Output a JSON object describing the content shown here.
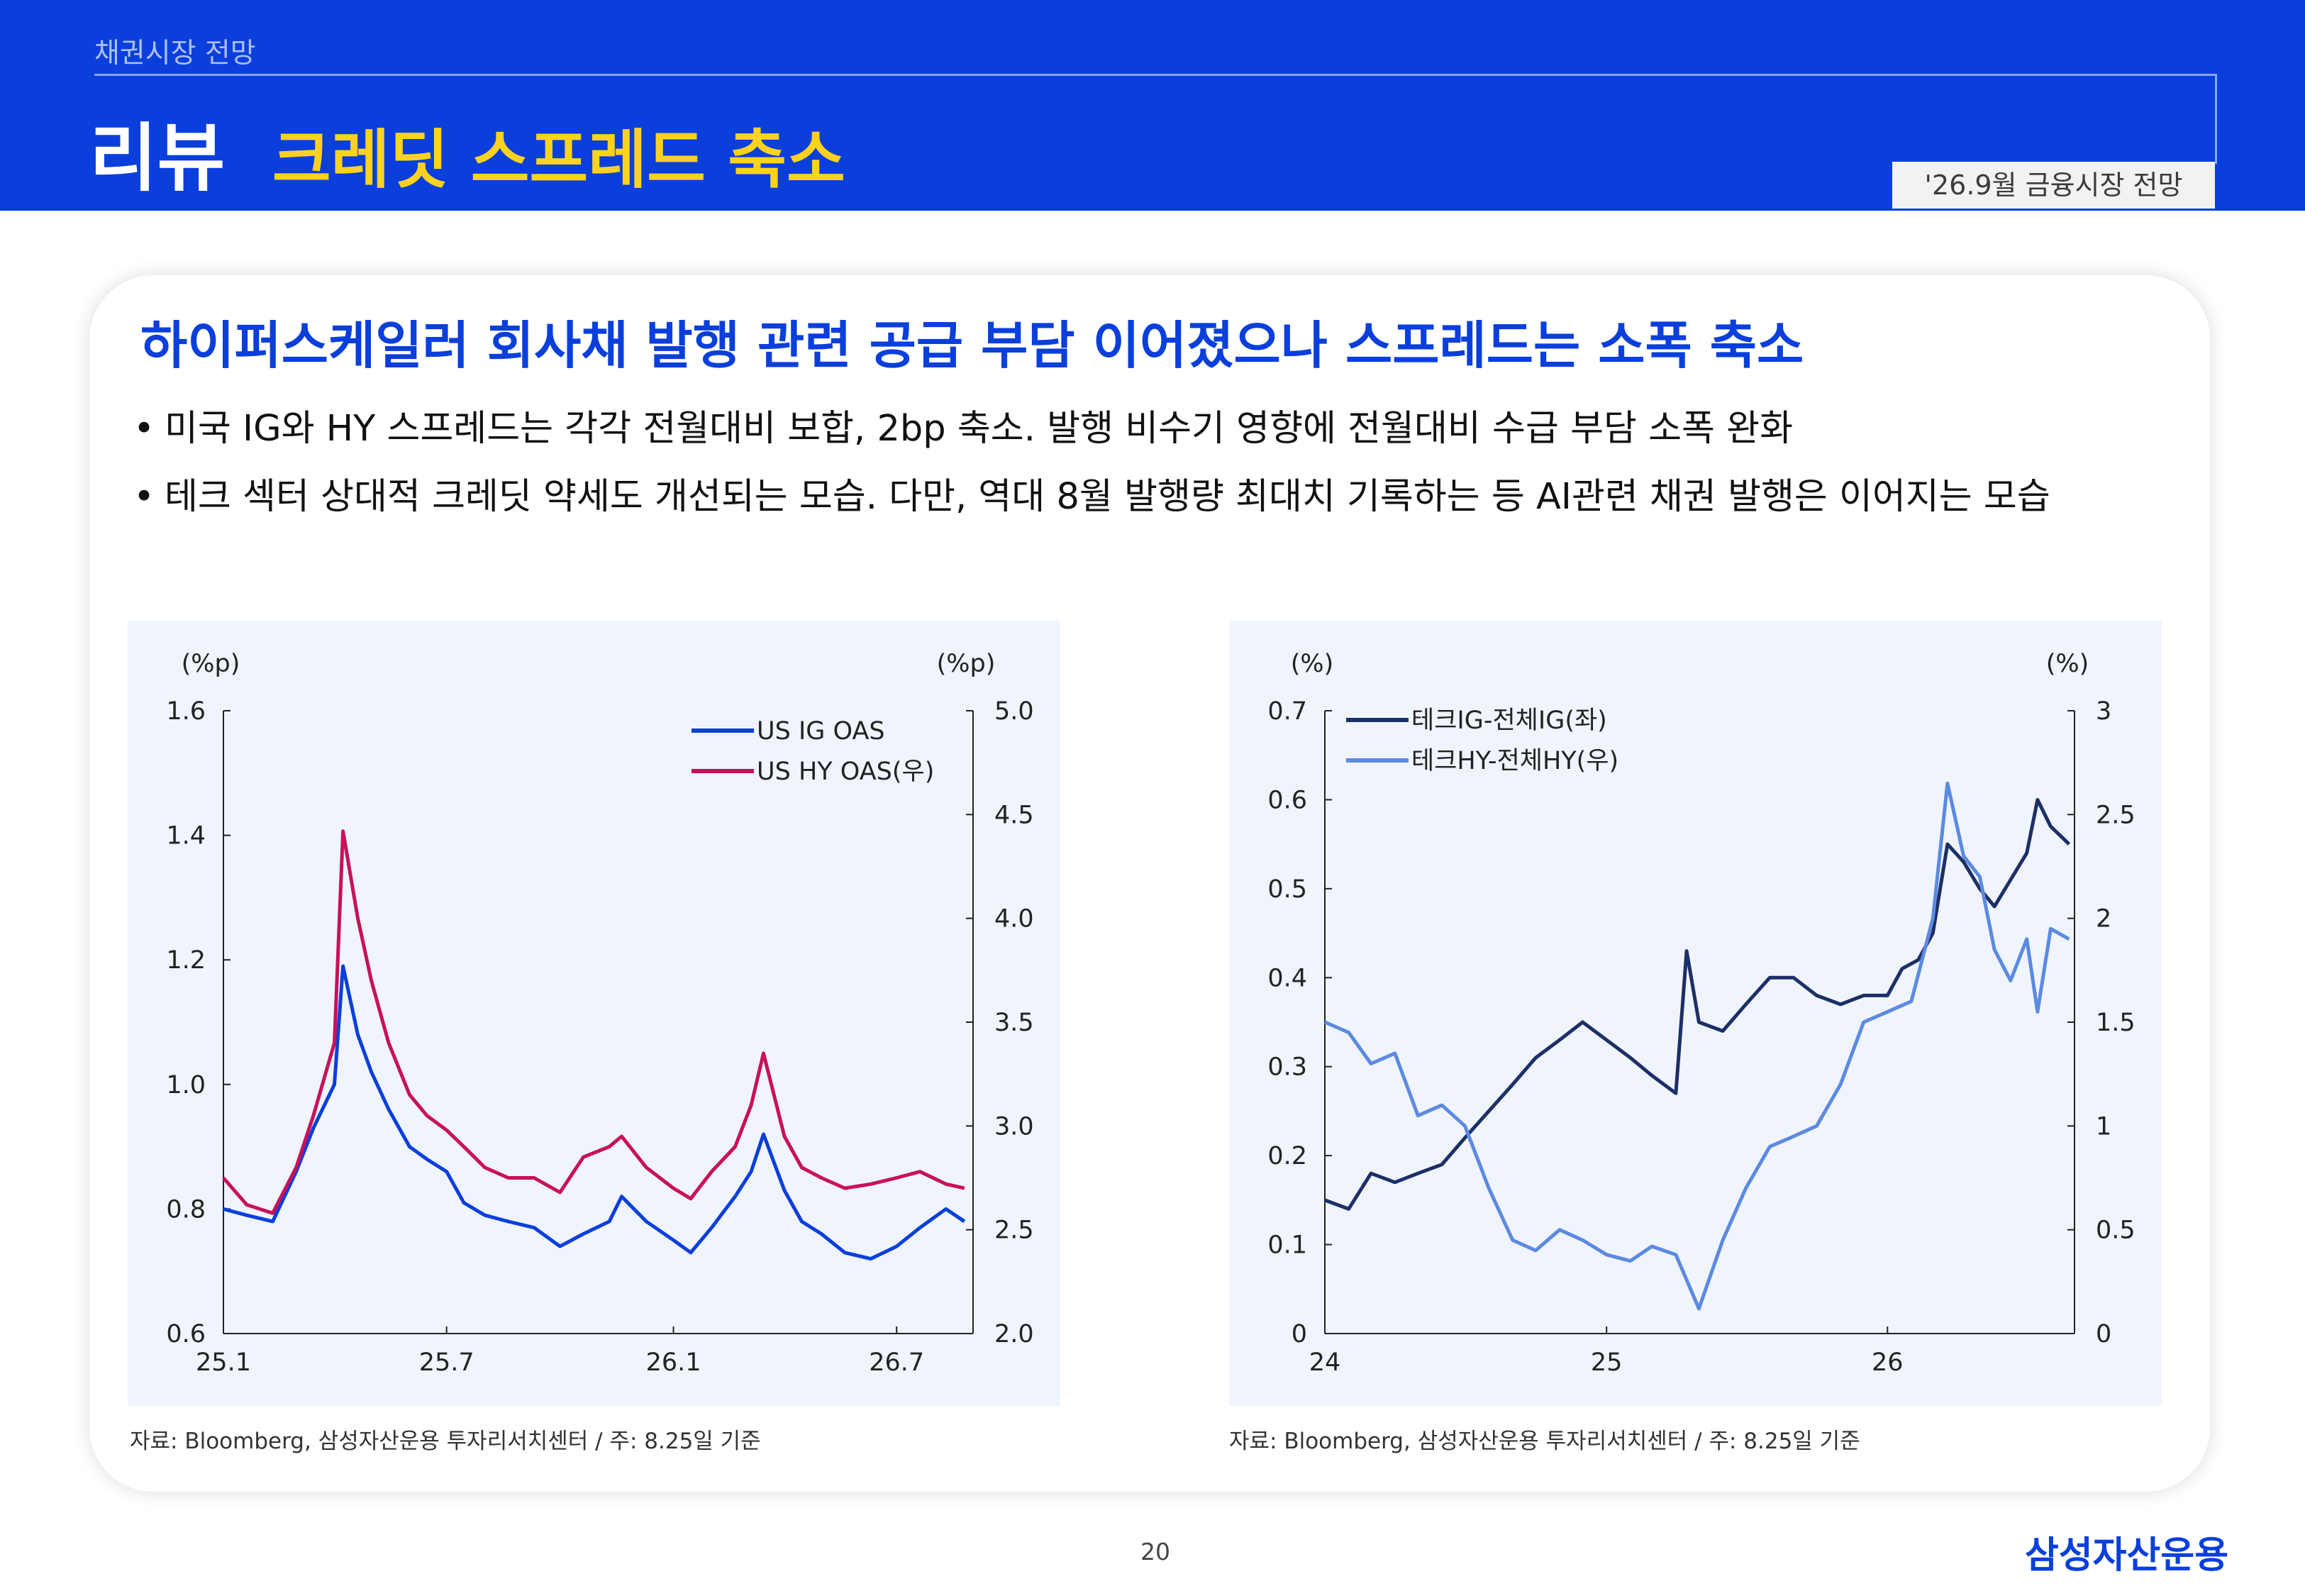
{
  "header": {
    "section": "채권시장 전망",
    "title_main": "리뷰",
    "title_sub": "크레딧 스프레드 축소",
    "issue": "'26.9월 금융시장 전망"
  },
  "content": {
    "headline": "하이퍼스케일러 회사채 발행 관련 공급 부담 이어졌으나 스프레드는 소폭 축소",
    "bullet_char": "•",
    "bullets": [
      "미국 IG와 HY 스프레드는 각각 전월대비 보합, 2bp 축소. 발행 비수기 영향에 전월대비 수급 부담 소폭 완화",
      "테크 섹터 상대적 크레딧 약세도 개선되는 모습. 다만, 역대 8월 발행량 최대치 기록하는 등 AI관련 채권 발행은 이어지는 모습"
    ]
  },
  "colors": {
    "brand_blue": "#0a3fdc",
    "accent_yellow": "#ffd21f",
    "ig_line": "#0a3fdc",
    "hy_line": "#c8115a",
    "tech_ig_line": "#1c2f66",
    "tech_hy_line": "#5b8ae0"
  },
  "chart_data": [
    {
      "type": "line",
      "left_unit": "(%p)",
      "right_unit": "(%p)",
      "x_ticks": [
        "25.1",
        "25.7",
        "26.1",
        "26.7"
      ],
      "x_tick_dates": [
        "2025-01-01",
        "2025-07-01",
        "2026-01-01",
        "2026-07-01"
      ],
      "x_range": [
        "2025-01-01",
        "2026-09-01"
      ],
      "ylim_left": [
        0.6,
        1.6
      ],
      "y_ticks_left": [
        "0.6",
        "0.8",
        "1.0",
        "1.2",
        "1.4",
        "1.6"
      ],
      "ylim_right": [
        2.0,
        5.0
      ],
      "y_ticks_right": [
        "2.0",
        "2.5",
        "3.0",
        "3.5",
        "4.0",
        "4.5",
        "5.0"
      ],
      "legend_position": "top-right",
      "series": [
        {
          "name": "US IG OAS",
          "axis": "left",
          "color": "#0a3fdc",
          "points": [
            [
              "2025-01-01",
              0.8
            ],
            [
              "2025-01-20",
              0.79
            ],
            [
              "2025-02-10",
              0.78
            ],
            [
              "2025-03-01",
              0.86
            ],
            [
              "2025-03-15",
              0.93
            ],
            [
              "2025-04-01",
              1.0
            ],
            [
              "2025-04-08",
              1.19
            ],
            [
              "2025-04-20",
              1.08
            ],
            [
              "2025-05-01",
              1.02
            ],
            [
              "2025-05-15",
              0.96
            ],
            [
              "2025-06-01",
              0.9
            ],
            [
              "2025-06-15",
              0.88
            ],
            [
              "2025-07-01",
              0.86
            ],
            [
              "2025-07-15",
              0.81
            ],
            [
              "2025-08-01",
              0.79
            ],
            [
              "2025-08-20",
              0.78
            ],
            [
              "2025-09-10",
              0.77
            ],
            [
              "2025-10-01",
              0.74
            ],
            [
              "2025-10-20",
              0.76
            ],
            [
              "2025-11-10",
              0.78
            ],
            [
              "2025-11-20",
              0.82
            ],
            [
              "2025-12-10",
              0.78
            ],
            [
              "2026-01-01",
              0.75
            ],
            [
              "2026-01-15",
              0.73
            ],
            [
              "2026-02-01",
              0.77
            ],
            [
              "2026-02-20",
              0.82
            ],
            [
              "2026-03-05",
              0.86
            ],
            [
              "2026-03-15",
              0.92
            ],
            [
              "2026-04-01",
              0.83
            ],
            [
              "2026-04-15",
              0.78
            ],
            [
              "2026-05-01",
              0.76
            ],
            [
              "2026-05-20",
              0.73
            ],
            [
              "2026-06-10",
              0.72
            ],
            [
              "2026-07-01",
              0.74
            ],
            [
              "2026-07-20",
              0.77
            ],
            [
              "2026-08-10",
              0.8
            ],
            [
              "2026-08-25",
              0.78
            ]
          ]
        },
        {
          "name": "US HY OAS(우)",
          "axis": "right",
          "color": "#c8115a",
          "points": [
            [
              "2025-01-01",
              2.75
            ],
            [
              "2025-01-20",
              2.62
            ],
            [
              "2025-02-10",
              2.58
            ],
            [
              "2025-03-01",
              2.8
            ],
            [
              "2025-03-15",
              3.05
            ],
            [
              "2025-04-01",
              3.4
            ],
            [
              "2025-04-08",
              4.42
            ],
            [
              "2025-04-20",
              4.0
            ],
            [
              "2025-05-01",
              3.7
            ],
            [
              "2025-05-15",
              3.4
            ],
            [
              "2025-06-01",
              3.15
            ],
            [
              "2025-06-15",
              3.05
            ],
            [
              "2025-07-01",
              2.98
            ],
            [
              "2025-07-15",
              2.9
            ],
            [
              "2025-08-01",
              2.8
            ],
            [
              "2025-08-20",
              2.75
            ],
            [
              "2025-09-10",
              2.75
            ],
            [
              "2025-10-01",
              2.68
            ],
            [
              "2025-10-20",
              2.85
            ],
            [
              "2025-11-10",
              2.9
            ],
            [
              "2025-11-20",
              2.95
            ],
            [
              "2025-12-10",
              2.8
            ],
            [
              "2026-01-01",
              2.7
            ],
            [
              "2026-01-15",
              2.65
            ],
            [
              "2026-02-01",
              2.78
            ],
            [
              "2026-02-20",
              2.9
            ],
            [
              "2026-03-05",
              3.1
            ],
            [
              "2026-03-15",
              3.35
            ],
            [
              "2026-04-01",
              2.95
            ],
            [
              "2026-04-15",
              2.8
            ],
            [
              "2026-05-01",
              2.75
            ],
            [
              "2026-05-20",
              2.7
            ],
            [
              "2026-06-10",
              2.72
            ],
            [
              "2026-07-01",
              2.75
            ],
            [
              "2026-07-20",
              2.78
            ],
            [
              "2026-08-10",
              2.72
            ],
            [
              "2026-08-25",
              2.7
            ]
          ]
        }
      ],
      "source": "자료: Bloomberg, 삼성자산운용 투자리서치센터 / 주: 8.25일 기준"
    },
    {
      "type": "line",
      "left_unit": "(%)",
      "right_unit": "(%)",
      "x_ticks": [
        "24",
        "25",
        "26"
      ],
      "x_tick_dates": [
        "2024-01-01",
        "2025-01-01",
        "2026-01-01"
      ],
      "x_range": [
        "2024-01-01",
        "2026-09-01"
      ],
      "ylim_left": [
        0,
        0.7
      ],
      "y_ticks_left": [
        "0",
        "0.1",
        "0.2",
        "0.3",
        "0.4",
        "0.5",
        "0.6",
        "0.7"
      ],
      "ylim_right": [
        0,
        3
      ],
      "y_ticks_right": [
        "0",
        "0.5",
        "1",
        "1.5",
        "2",
        "2.5",
        "3"
      ],
      "legend_position": "top-left",
      "series": [
        {
          "name": "테크IG-전체IG(좌)",
          "axis": "left",
          "color": "#1c2f66",
          "points": [
            [
              "2024-01-01",
              0.15
            ],
            [
              "2024-02-01",
              0.14
            ],
            [
              "2024-03-01",
              0.18
            ],
            [
              "2024-04-01",
              0.17
            ],
            [
              "2024-05-01",
              0.18
            ],
            [
              "2024-06-01",
              0.19
            ],
            [
              "2024-07-01",
              0.22
            ],
            [
              "2024-08-01",
              0.25
            ],
            [
              "2024-09-01",
              0.28
            ],
            [
              "2024-10-01",
              0.31
            ],
            [
              "2024-11-01",
              0.33
            ],
            [
              "2024-12-01",
              0.35
            ],
            [
              "2025-01-01",
              0.33
            ],
            [
              "2025-02-01",
              0.31
            ],
            [
              "2025-03-01",
              0.29
            ],
            [
              "2025-04-01",
              0.27
            ],
            [
              "2025-04-15",
              0.43
            ],
            [
              "2025-05-01",
              0.35
            ],
            [
              "2025-06-01",
              0.34
            ],
            [
              "2025-07-01",
              0.37
            ],
            [
              "2025-08-01",
              0.4
            ],
            [
              "2025-09-01",
              0.4
            ],
            [
              "2025-10-01",
              0.38
            ],
            [
              "2025-11-01",
              0.37
            ],
            [
              "2025-12-01",
              0.38
            ],
            [
              "2026-01-01",
              0.38
            ],
            [
              "2026-01-20",
              0.41
            ],
            [
              "2026-02-10",
              0.42
            ],
            [
              "2026-03-01",
              0.45
            ],
            [
              "2026-03-20",
              0.55
            ],
            [
              "2026-04-10",
              0.53
            ],
            [
              "2026-05-01",
              0.5
            ],
            [
              "2026-05-20",
              0.48
            ],
            [
              "2026-06-10",
              0.51
            ],
            [
              "2026-07-01",
              0.54
            ],
            [
              "2026-07-15",
              0.6
            ],
            [
              "2026-08-01",
              0.57
            ],
            [
              "2026-08-25",
              0.55
            ]
          ]
        },
        {
          "name": "테크HY-전체HY(우)",
          "axis": "right",
          "color": "#5b8ae0",
          "points": [
            [
              "2024-01-01",
              1.5
            ],
            [
              "2024-02-01",
              1.45
            ],
            [
              "2024-03-01",
              1.3
            ],
            [
              "2024-04-01",
              1.35
            ],
            [
              "2024-05-01",
              1.05
            ],
            [
              "2024-06-01",
              1.1
            ],
            [
              "2024-07-01",
              1.0
            ],
            [
              "2024-08-01",
              0.7
            ],
            [
              "2024-09-01",
              0.45
            ],
            [
              "2024-10-01",
              0.4
            ],
            [
              "2024-11-01",
              0.5
            ],
            [
              "2024-12-01",
              0.45
            ],
            [
              "2025-01-01",
              0.38
            ],
            [
              "2025-02-01",
              0.35
            ],
            [
              "2025-03-01",
              0.42
            ],
            [
              "2025-04-01",
              0.38
            ],
            [
              "2025-05-01",
              0.12
            ],
            [
              "2025-06-01",
              0.45
            ],
            [
              "2025-07-01",
              0.7
            ],
            [
              "2025-08-01",
              0.9
            ],
            [
              "2025-09-01",
              0.95
            ],
            [
              "2025-10-01",
              1.0
            ],
            [
              "2025-11-01",
              1.2
            ],
            [
              "2025-12-01",
              1.5
            ],
            [
              "2026-01-01",
              1.55
            ],
            [
              "2026-02-01",
              1.6
            ],
            [
              "2026-03-01",
              2.0
            ],
            [
              "2026-03-20",
              2.65
            ],
            [
              "2026-04-10",
              2.3
            ],
            [
              "2026-05-01",
              2.2
            ],
            [
              "2026-05-20",
              1.85
            ],
            [
              "2026-06-10",
              1.7
            ],
            [
              "2026-07-01",
              1.9
            ],
            [
              "2026-07-15",
              1.55
            ],
            [
              "2026-08-01",
              1.95
            ],
            [
              "2026-08-25",
              1.9
            ]
          ]
        }
      ],
      "source": "자료: Bloomberg, 삼성자산운용 투자리서치센터 / 주: 8.25일 기준"
    }
  ],
  "footer": {
    "page": "20",
    "logo": "삼성자산운용"
  }
}
